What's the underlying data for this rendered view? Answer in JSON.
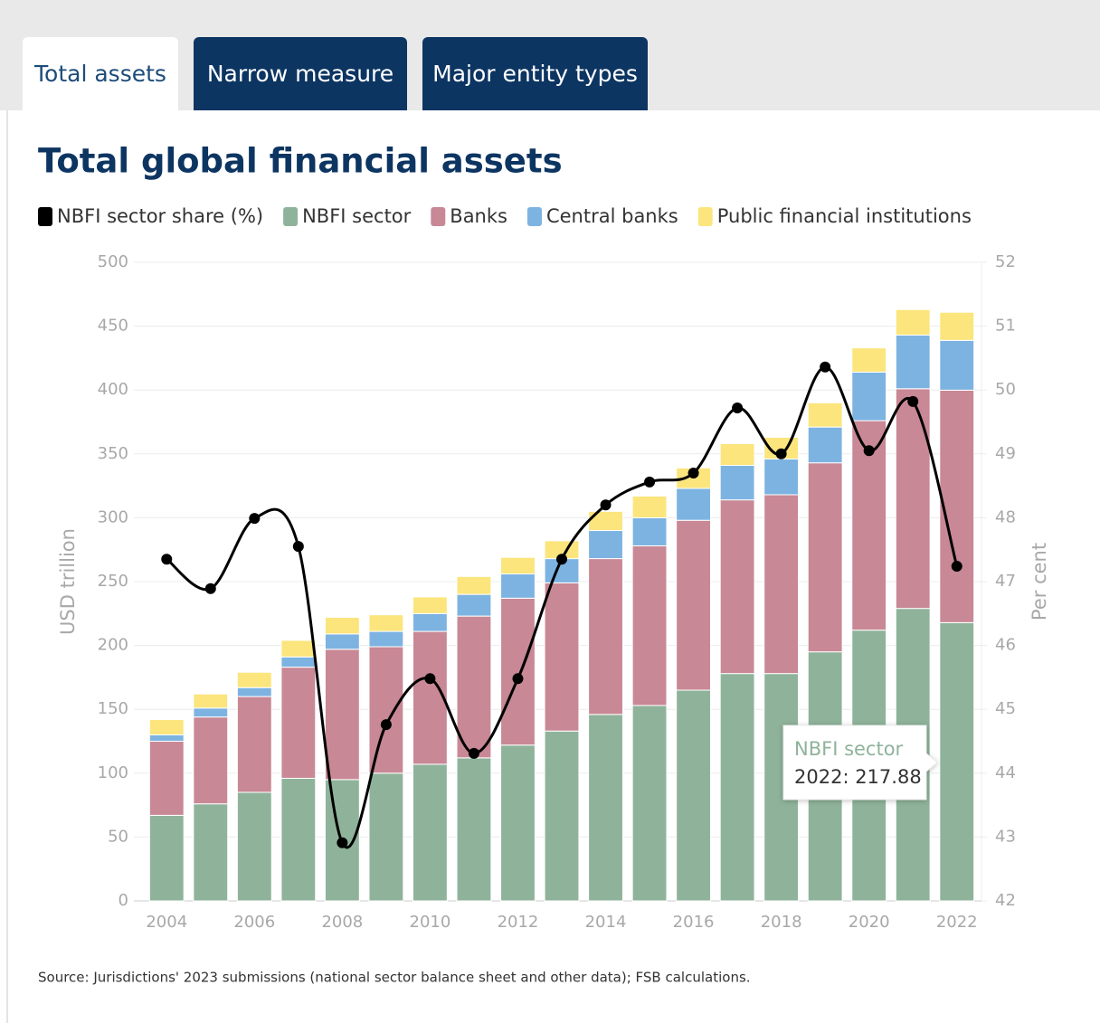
{
  "tabs": [
    "Total assets",
    "Narrow measure",
    "Major entity types"
  ],
  "chart_data": {
    "type": "bar",
    "stacked": true,
    "title": "Total global financial assets",
    "ylabel": "USD trillion",
    "y2label": "Per cent",
    "categories": [
      "2004",
      null,
      "2006",
      null,
      "2008",
      null,
      "2010",
      null,
      "2012",
      null,
      "2014",
      null,
      "2016",
      null,
      "2018",
      null,
      "2020",
      null,
      "2022"
    ],
    "ylim": [
      0,
      500
    ],
    "yticks": [
      0,
      50,
      100,
      150,
      200,
      250,
      300,
      350,
      400,
      450,
      500
    ],
    "y2lim": [
      42,
      52
    ],
    "y2ticks": [
      42,
      43,
      44,
      45,
      46,
      47,
      48,
      49,
      50,
      51,
      52
    ],
    "grid": true,
    "series": [
      {
        "name": "NBFI sector share (%)",
        "color": "#000000",
        "type": "line",
        "axis": "y2",
        "values": [
          47.35,
          46.89,
          47.99,
          47.55,
          42.91,
          44.76,
          45.48,
          44.31,
          45.48,
          47.35,
          48.2,
          48.56,
          48.7,
          49.72,
          49.0,
          50.36,
          49.05,
          49.82,
          47.24
        ]
      },
      {
        "name": "NBFI sector",
        "color": "#8fb39a",
        "values": [
          67,
          76,
          85,
          96,
          95,
          100,
          107,
          112,
          122,
          133,
          146,
          153,
          165,
          178,
          178,
          195,
          212,
          229,
          217.88
        ]
      },
      {
        "name": "Banks",
        "color": "#c88896",
        "values": [
          58,
          68,
          75,
          87,
          102,
          99,
          104,
          111,
          115,
          116,
          122,
          125,
          133,
          136,
          140,
          148,
          164,
          172,
          182
        ]
      },
      {
        "name": "Central banks",
        "color": "#7db3e1",
        "values": [
          5,
          7,
          7,
          8,
          12,
          12,
          14,
          17,
          19,
          19,
          22,
          22,
          25,
          27,
          28,
          28,
          38,
          42,
          39
        ]
      },
      {
        "name": "Public financial institutions",
        "color": "#fbe57c",
        "values": [
          12,
          11,
          12,
          13,
          13,
          13,
          13,
          14,
          13,
          14,
          15,
          17,
          16,
          17,
          17,
          19,
          19,
          20,
          22
        ]
      }
    ],
    "tooltip": {
      "title": "NBFI sector",
      "label": "2022: 217.88"
    },
    "source": "Source: Jurisdictions' 2023 submissions (national sector balance sheet and other data); FSB calculations."
  }
}
